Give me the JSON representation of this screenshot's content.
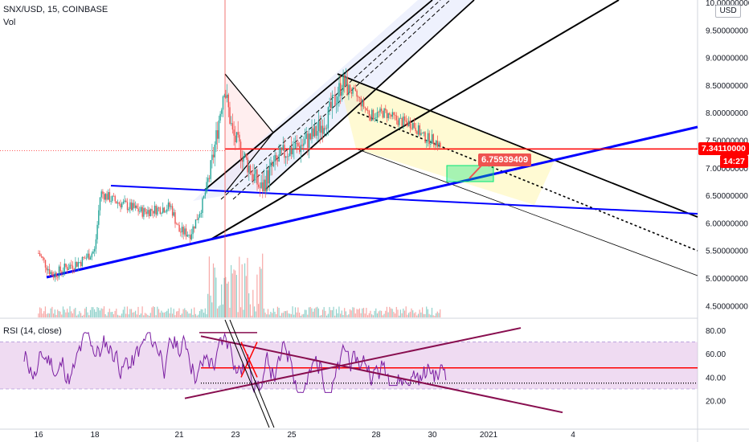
{
  "header": {
    "symbol_line": "SNX/USD, 15, COINBASE",
    "volume_label": "Vol"
  },
  "currency": "USD",
  "colors": {
    "price_line": "#ff0000",
    "up": "#26a69a",
    "down": "#ef5350",
    "blue_line": "#0000ff",
    "rsi": "#7b1fa2",
    "rsi_band": "#e1bee7",
    "channel": "#000000",
    "target_box": "#00e676",
    "wedge_fill": "#fff59d"
  },
  "price_badge": {
    "value": "7.34110000",
    "countdown": "14:27"
  },
  "target_label": "6.75939409",
  "chart_data": [
    {
      "type": "candlestick",
      "title": "SNX/USD, 15, COINBASE",
      "ylim": [
        4.3,
        10.0
      ],
      "x_ticks": [
        "16",
        "18",
        "21",
        "23",
        "25",
        "28",
        "30",
        "2021",
        "4"
      ],
      "y_ticks": [
        "10.00000000",
        "9.50000000",
        "9.00000000",
        "8.50000000",
        "8.00000000",
        "7.50000000",
        "7.00000000",
        "6.50000000",
        "6.00000000",
        "5.50000000",
        "5.00000000",
        "4.50000000"
      ],
      "price_path": [
        [
          16,
          5.45
        ],
        [
          16.5,
          5.05
        ],
        [
          17,
          5.2
        ],
        [
          17.5,
          5.3
        ],
        [
          18,
          5.5
        ],
        [
          18.2,
          6.55
        ],
        [
          18.7,
          6.4
        ],
        [
          19.2,
          6.3
        ],
        [
          19.7,
          6.2
        ],
        [
          20.2,
          6.25
        ],
        [
          20.7,
          6.3
        ],
        [
          21,
          5.85
        ],
        [
          21.4,
          5.8
        ],
        [
          21.8,
          6.3
        ],
        [
          22.1,
          6.9
        ],
        [
          22.3,
          7.5
        ],
        [
          22.6,
          8.5
        ],
        [
          22.9,
          7.6
        ],
        [
          23.2,
          7.3
        ],
        [
          23.5,
          7.0
        ],
        [
          23.9,
          6.6
        ],
        [
          24.3,
          7.0
        ],
        [
          24.8,
          7.3
        ],
        [
          25.3,
          7.4
        ],
        [
          25.8,
          7.6
        ],
        [
          26.3,
          7.95
        ],
        [
          26.8,
          8.55
        ],
        [
          27.3,
          8.3
        ],
        [
          27.8,
          7.95
        ],
        [
          28.3,
          8.0
        ],
        [
          28.8,
          7.85
        ],
        [
          29.3,
          7.8
        ],
        [
          29.7,
          7.55
        ],
        [
          30.1,
          7.5
        ],
        [
          30.3,
          7.36
        ]
      ],
      "current_price": 7.3411,
      "target_price": 6.75939409
    },
    {
      "type": "line",
      "title": "RSI (14, close)",
      "ylim": [
        10,
        85
      ],
      "y_ticks": [
        "80.00",
        "60.00",
        "40.00",
        "20.00"
      ],
      "band": [
        30,
        70
      ],
      "levels": [
        48,
        35
      ]
    }
  ]
}
